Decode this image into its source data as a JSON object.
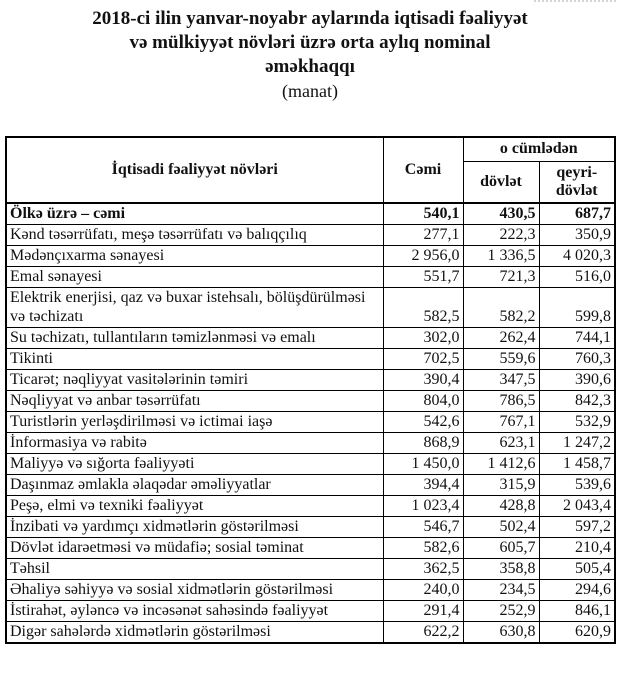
{
  "title": {
    "line1": "2018-ci ilin yanvar-noyabr aylarında iqtisadi fəaliyyət",
    "line2": "və mülkiyyət növləri üzrə orta aylıq nominal",
    "line3": "əməkhaqqı",
    "unit": "(manat)"
  },
  "colors": {
    "text": "#111111",
    "border": "#000000",
    "background": "#ffffff"
  },
  "table": {
    "headers": {
      "activity": "İqtisadi fəaliyyət növləri",
      "total": "Cəmi",
      "group": "o cümlədən",
      "state": "dövlət",
      "nonstate": "qeyri-dövlət"
    },
    "rows": [
      {
        "label": "Ölkə üzrə – cəmi",
        "total": "540,1",
        "state": "430,5",
        "nonstate": "687,7",
        "bold": true
      },
      {
        "label": "Kənd təsərrüfatı, meşə təsərrüfatı və balıqçılıq",
        "total": "277,1",
        "state": "222,3",
        "nonstate": "350,9",
        "bold": false
      },
      {
        "label": "Mədənçıxarma sənayesi",
        "total": "2 956,0",
        "state": "1 336,5",
        "nonstate": "4 020,3",
        "bold": false
      },
      {
        "label": "Emal sənayesi",
        "total": "551,7",
        "state": "721,3",
        "nonstate": "516,0",
        "bold": false
      },
      {
        "label": "Elektrik enerjisi, qaz və buxar istehsalı, bölüşdürülməsi və təchizatı",
        "total": "582,5",
        "state": "582,2",
        "nonstate": "599,8",
        "bold": false
      },
      {
        "label": "Su təchizatı, tullantıların təmizlənməsi və emalı",
        "total": "302,0",
        "state": "262,4",
        "nonstate": "744,1",
        "bold": false
      },
      {
        "label": "Tikinti",
        "total": "702,5",
        "state": "559,6",
        "nonstate": "760,3",
        "bold": false
      },
      {
        "label": "Ticarət; nəqliyyat vasitələrinin təmiri",
        "total": "390,4",
        "state": "347,5",
        "nonstate": "390,6",
        "bold": false
      },
      {
        "label": "Nəqliyyat və anbar təsərrüfatı",
        "total": "804,0",
        "state": "786,5",
        "nonstate": "842,3",
        "bold": false
      },
      {
        "label": "Turistlərin yerləşdirilməsi və ictimai iaşə",
        "total": "542,6",
        "state": "767,1",
        "nonstate": "532,9",
        "bold": false
      },
      {
        "label": "İnformasiya və rabitə",
        "total": "868,9",
        "state": "623,1",
        "nonstate": "1 247,2",
        "bold": false
      },
      {
        "label": "Maliyyə və sığorta fəaliyyəti",
        "total": "1 450,0",
        "state": "1 412,6",
        "nonstate": "1 458,7",
        "bold": false
      },
      {
        "label": "Daşınmaz əmlakla əlaqədar əməliyyatlar",
        "total": "394,4",
        "state": "315,9",
        "nonstate": "539,6",
        "bold": false
      },
      {
        "label": "Peşə, elmi və texniki fəaliyyət",
        "total": "1 023,4",
        "state": "428,8",
        "nonstate": "2 043,4",
        "bold": false
      },
      {
        "label": "İnzibati və yardımçı xidmətlərin göstərilməsi",
        "total": "546,7",
        "state": "502,4",
        "nonstate": "597,2",
        "bold": false
      },
      {
        "label": "Dövlət idarəetməsi və müdafiə; sosial təminat",
        "total": "582,6",
        "state": "605,7",
        "nonstate": "210,4",
        "bold": false
      },
      {
        "label": "Təhsil",
        "total": "362,5",
        "state": "358,8",
        "nonstate": "505,4",
        "bold": false
      },
      {
        "label": "Əhaliyə səhiyyə və sosial xidmətlərin göstərilməsi",
        "total": "240,0",
        "state": "234,5",
        "nonstate": "294,6",
        "bold": false
      },
      {
        "label": "İstirahət, əyləncə və incəsənət sahəsində fəaliyyət",
        "total": "291,4",
        "state": "252,9",
        "nonstate": "846,1",
        "bold": false
      },
      {
        "label": "Digər sahələrdə xidmətlərin göstərilməsi",
        "total": "622,2",
        "state": "630,8",
        "nonstate": "620,9",
        "bold": false
      }
    ]
  }
}
